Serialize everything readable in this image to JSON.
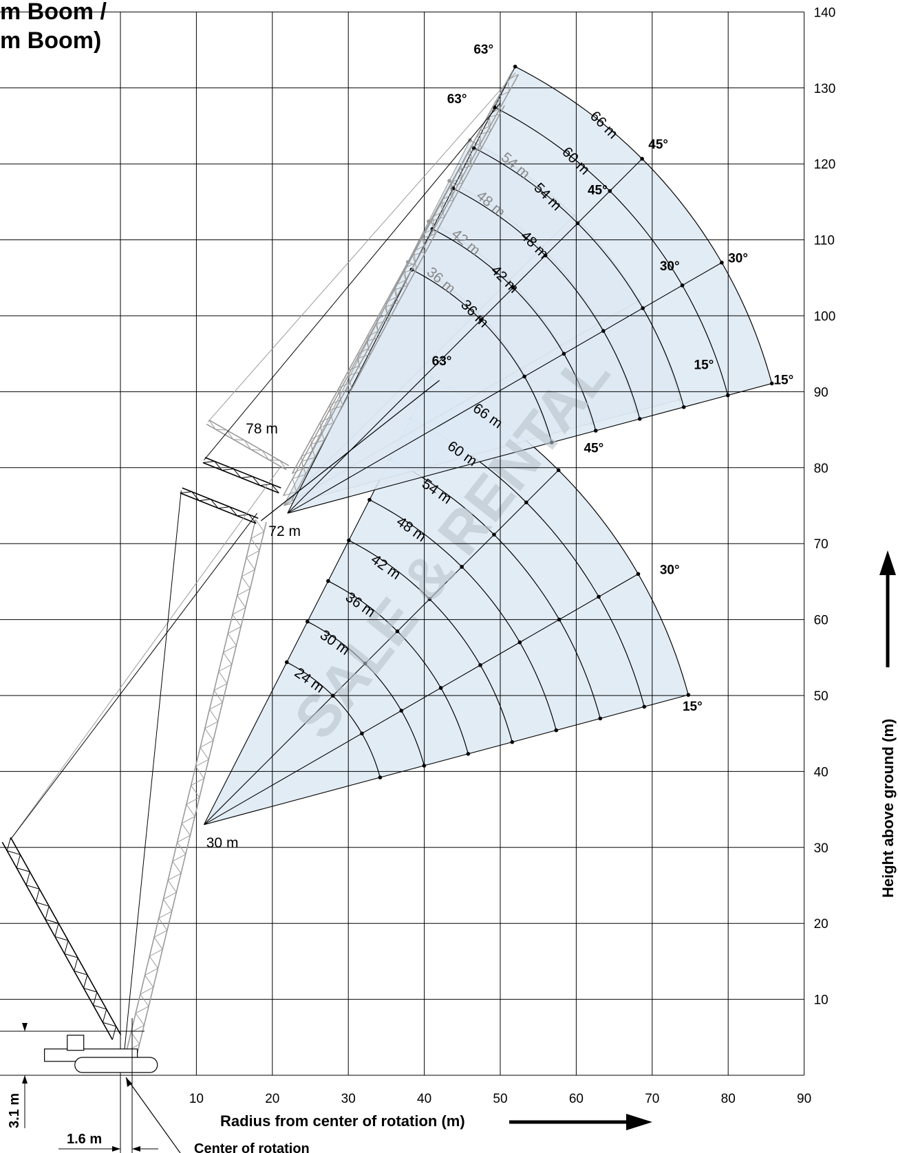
{
  "title": {
    "line1": "m Boom /",
    "line2": "m Boom)"
  },
  "axes": {
    "x_label": "Radius from center of rotation (m)",
    "y_label": "Height above ground (m)",
    "x_ticks": [
      "10",
      "20",
      "30",
      "40",
      "50",
      "60",
      "70",
      "80",
      "90"
    ],
    "y_ticks": [
      "10",
      "20",
      "30",
      "40",
      "50",
      "60",
      "70",
      "80",
      "90",
      "100",
      "110",
      "120",
      "130",
      "140"
    ]
  },
  "watermark": "SALE & RENTAL",
  "colors": {
    "fan_fill": "#dde9f3",
    "grey": "#9a9a9a",
    "watermark": "#b9c3cc"
  },
  "dimensions": {
    "height_offset": "3.1 m",
    "radius_offset": "1.6 m",
    "center_of_rotation": "Center of rotation"
  },
  "chart_data": {
    "type": "diagram",
    "xlim": [
      0,
      90
    ],
    "ylim": [
      0,
      140
    ],
    "origin": [
      -16,
      0
    ],
    "lower_fan": {
      "main_boom": "72 m",
      "pivot": [
        11,
        33
      ],
      "luffing_jibs": [
        "24 m",
        "30 m",
        "36 m",
        "42 m",
        "48 m",
        "54 m",
        "60 m",
        "66 m"
      ],
      "angle_labels": [
        "63°",
        "45°",
        "30°",
        "15°"
      ]
    },
    "upper_fan": {
      "main_boom": "78 m",
      "pivot": [
        22,
        74
      ],
      "luffing_jibs_black": [
        "36 m",
        "42 m",
        "48 m",
        "54 m",
        "60 m",
        "66 m"
      ],
      "luffing_jibs_grey": [
        "36 m",
        "42 m",
        "48 m",
        "54 m"
      ],
      "angle_labels": [
        "63°",
        "63°",
        "45°",
        "45°",
        "30°",
        "30°",
        "15°",
        "15°"
      ]
    },
    "pivot_label": "30 m"
  }
}
